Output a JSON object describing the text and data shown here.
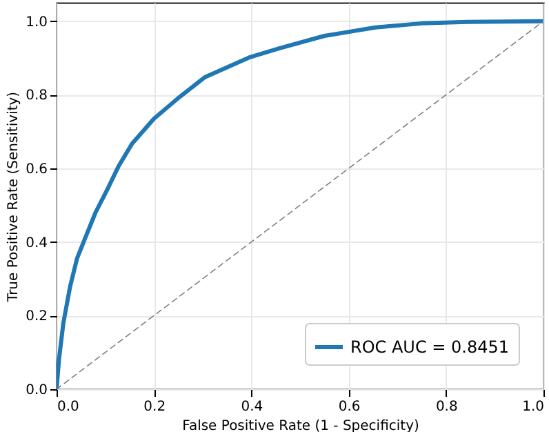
{
  "chart_data": {
    "type": "line",
    "xlabel": "False Positive Rate (1 - Specificity)",
    "ylabel": "True Positive Rate (Sensitivity)",
    "xlim": [
      0,
      1
    ],
    "ylim": [
      0,
      1.05
    ],
    "xticks": [
      {
        "value": 0,
        "label": "0.0"
      },
      {
        "value": 0.2,
        "label": "0.2"
      },
      {
        "value": 0.4,
        "label": "0.4"
      },
      {
        "value": 0.6,
        "label": "0.6"
      },
      {
        "value": 0.8,
        "label": "0.8"
      },
      {
        "value": 1,
        "label": "1.0"
      }
    ],
    "yticks": [
      {
        "value": 0,
        "label": "0.0"
      },
      {
        "value": 0.2,
        "label": "0.2"
      },
      {
        "value": 0.4,
        "label": "0.4"
      },
      {
        "value": 0.6,
        "label": "0.6"
      },
      {
        "value": 0.8,
        "label": "0.8"
      },
      {
        "value": 1,
        "label": "1.0"
      }
    ],
    "grid": true,
    "legend": "bottom right",
    "series": [
      {
        "name": "ROC AUC = 0.8451",
        "color": "#1f77b4",
        "line_style": "solid",
        "x": [
          0,
          0.005,
          0.014,
          0.028,
          0.042,
          0.061,
          0.08,
          0.104,
          0.127,
          0.155,
          0.2,
          0.249,
          0.305,
          0.395,
          0.457,
          0.55,
          0.655,
          0.75,
          0.843,
          1
        ],
        "values": [
          0,
          0.081,
          0.18,
          0.28,
          0.355,
          0.418,
          0.48,
          0.542,
          0.605,
          0.667,
          0.735,
          0.79,
          0.848,
          0.901,
          0.926,
          0.96,
          0.983,
          0.994,
          0.998,
          1
        ]
      },
      {
        "color": "#808080",
        "line_style": "dashed",
        "x": [
          0,
          1
        ],
        "values": [
          0,
          1
        ]
      }
    ]
  }
}
